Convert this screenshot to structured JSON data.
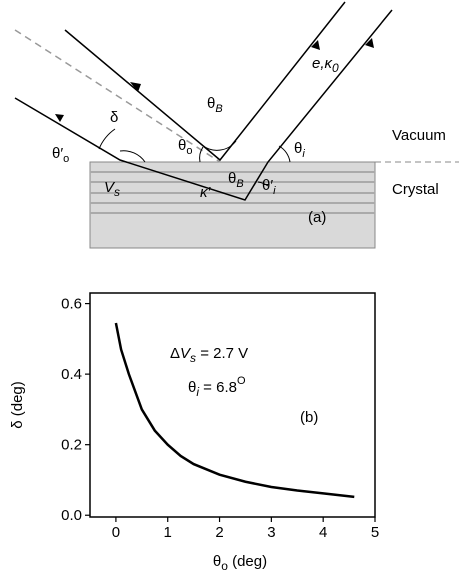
{
  "diagram": {
    "panel_label": "(a)",
    "vacuum": "Vacuum",
    "crystal": "Crystal",
    "delta": "δ",
    "theta_o_prime": {
      "base": "θ",
      "prime": "′",
      "sub": "o"
    },
    "theta_o": {
      "base": "θ",
      "sub": "o"
    },
    "theta_B_top": {
      "base": "θ",
      "sub": "B"
    },
    "theta_B_bottom": {
      "base": "θ",
      "sub": "B"
    },
    "theta_i": {
      "base": "θ",
      "sub": "i"
    },
    "theta_i_prime": {
      "base": "θ",
      "prime": "′",
      "sub": "i"
    },
    "kappa_prime": "κ′",
    "V_s": {
      "base": "V",
      "sub": "s"
    },
    "beam": {
      "base": "e,κ",
      "sub": "0"
    }
  },
  "chart_data": {
    "type": "line",
    "panel_label": "(b)",
    "x_label": {
      "base": "θ",
      "sub": "o",
      "post": " (deg)"
    },
    "y_label": "δ (deg)",
    "annotations": [
      {
        "pre": "Δ",
        "var": "V",
        "sub": "s",
        "post": " = 2.7 V"
      },
      {
        "var": "θ",
        "sub": "i",
        "post": " = 6.8",
        "sup": "O"
      }
    ],
    "x": [
      0,
      0.1,
      0.25,
      0.5,
      0.75,
      1,
      1.25,
      1.5,
      2,
      2.5,
      3,
      3.5,
      4,
      4.6
    ],
    "values": [
      0.545,
      0.47,
      0.4,
      0.3,
      0.24,
      0.2,
      0.168,
      0.145,
      0.115,
      0.095,
      0.08,
      0.07,
      0.062,
      0.052
    ],
    "color": "#000000",
    "xlim": [
      -0.5,
      5
    ],
    "ylim": [
      -0.005,
      0.63
    ],
    "xticks": [
      0,
      1,
      2,
      3,
      4,
      5
    ],
    "yticks": [
      {
        "value": 0,
        "label": "0.0"
      },
      0.2,
      0.4,
      0.6
    ]
  }
}
